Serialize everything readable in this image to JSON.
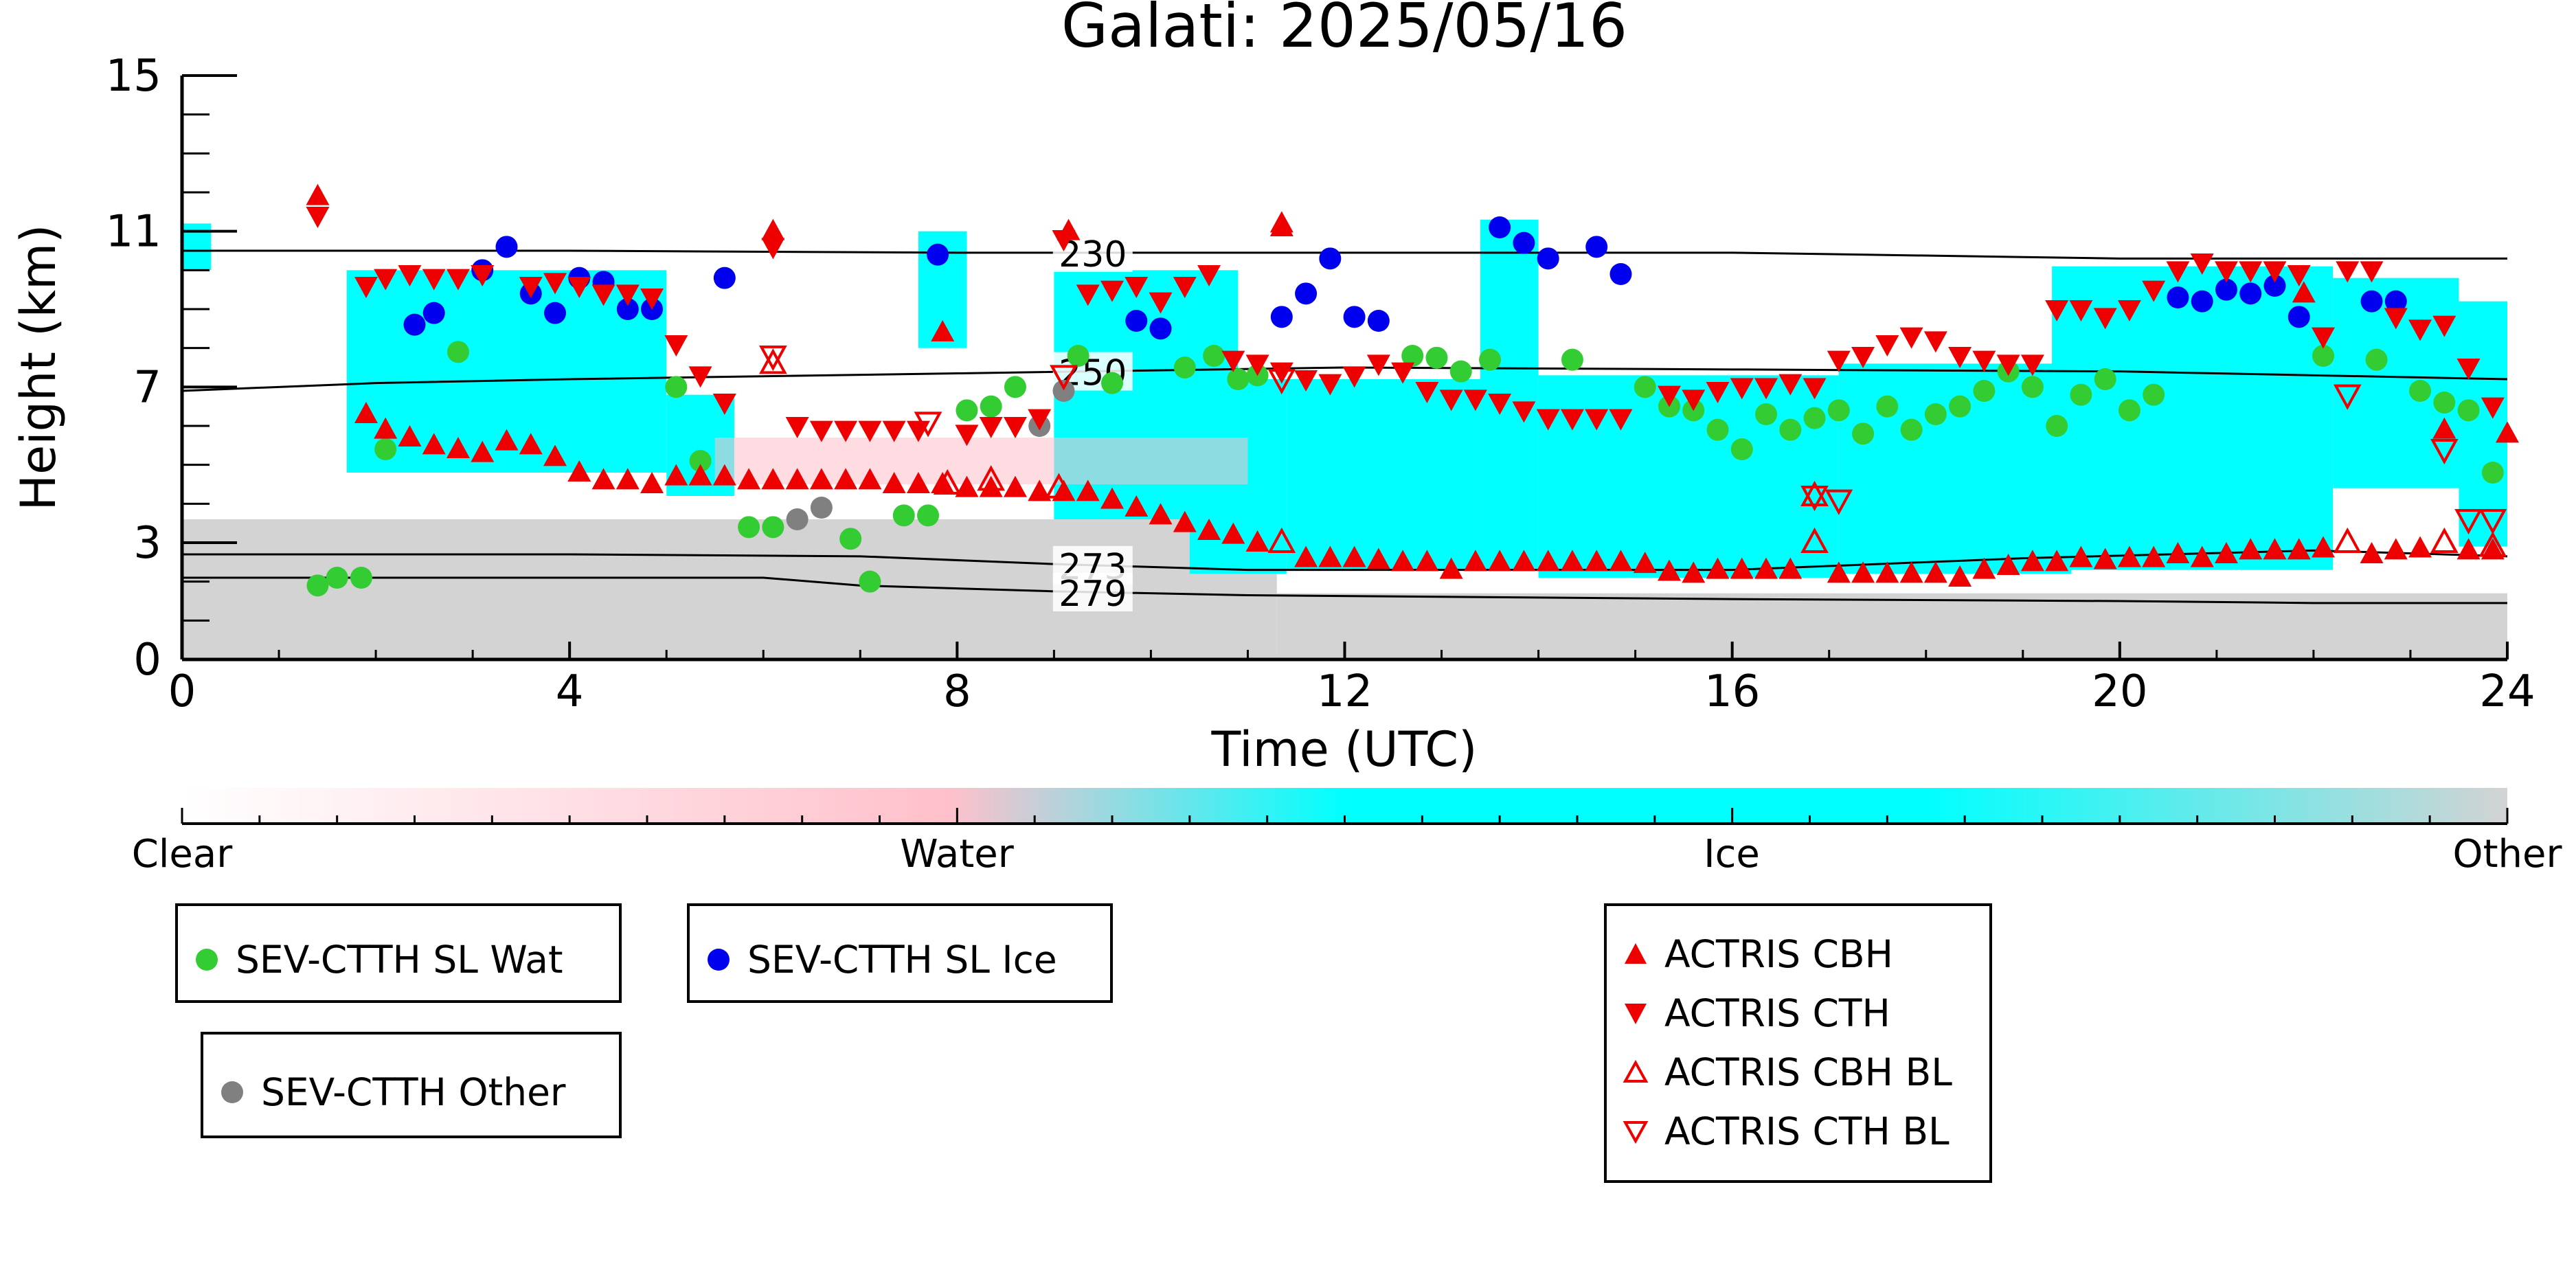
{
  "chart_data": {
    "type": "scatter",
    "title": "Galati: 2025/05/16",
    "xlabel": "Time (UTC)",
    "ylabel": "Height (km)",
    "xlim": [
      0,
      24
    ],
    "ylim": [
      0,
      15
    ],
    "xticks": [
      0,
      4,
      8,
      12,
      16,
      20,
      24
    ],
    "yticks": [
      0,
      3,
      7,
      11,
      15
    ],
    "background_classification": {
      "colorbar_labels": [
        "Clear",
        "Water",
        "Ice",
        "Other"
      ],
      "colors": {
        "clear": "#ffffff",
        "water": "#ffc0cb",
        "ice": "#00ffff",
        "other": "#d3d3d3"
      },
      "ice_regions": [
        {
          "x": [
            0.0,
            0.3
          ],
          "y": [
            10.0,
            11.2
          ]
        },
        {
          "x": [
            1.7,
            5.0
          ],
          "y": [
            4.8,
            10.0
          ]
        },
        {
          "x": [
            5.0,
            5.7
          ],
          "y": [
            4.2,
            6.8
          ]
        },
        {
          "x": [
            7.6,
            8.1
          ],
          "y": [
            8.0,
            11.0
          ]
        },
        {
          "x": [
            9.0,
            10.9
          ],
          "y": [
            3.6,
            10.0
          ]
        },
        {
          "x": [
            10.4,
            11.4
          ],
          "y": [
            2.2,
            7.2
          ]
        },
        {
          "x": [
            11.4,
            13.4
          ],
          "y": [
            2.3,
            7.2
          ]
        },
        {
          "x": [
            13.4,
            14.0
          ],
          "y": [
            2.3,
            11.3
          ]
        },
        {
          "x": [
            14.0,
            17.1
          ],
          "y": [
            2.1,
            7.3
          ]
        },
        {
          "x": [
            17.1,
            19.5
          ],
          "y": [
            2.2,
            7.6
          ]
        },
        {
          "x": [
            19.3,
            22.2
          ],
          "y": [
            2.3,
            10.1
          ]
        },
        {
          "x": [
            22.2,
            23.5
          ],
          "y": [
            4.4,
            9.8
          ]
        },
        {
          "x": [
            23.5,
            24.0
          ],
          "y": [
            2.9,
            9.2
          ]
        }
      ],
      "other_regions": [
        {
          "x": [
            0.0,
            11.3
          ],
          "y": [
            0.0,
            3.6
          ]
        },
        {
          "x": [
            11.3,
            24.0
          ],
          "y": [
            0.0,
            1.7
          ]
        }
      ],
      "water_regions": [
        {
          "x": [
            5.5,
            11.0
          ],
          "y": [
            4.5,
            5.7
          ]
        }
      ]
    },
    "isotherms": [
      {
        "label": "230",
        "label_x": 9.4,
        "x": [
          0,
          4,
          8,
          12,
          16,
          20,
          24
        ],
        "y": [
          10.5,
          10.5,
          10.45,
          10.45,
          10.45,
          10.3,
          10.3
        ]
      },
      {
        "label": "250",
        "label_x": 9.4,
        "x": [
          0,
          1,
          2,
          4,
          8,
          12,
          16,
          20,
          24
        ],
        "y": [
          6.9,
          7.0,
          7.1,
          7.2,
          7.35,
          7.5,
          7.45,
          7.4,
          7.2
        ]
      },
      {
        "label": "273",
        "label_x": 9.4,
        "x": [
          0,
          4,
          7,
          9,
          11,
          12,
          16,
          19,
          22,
          24
        ],
        "y": [
          2.7,
          2.7,
          2.65,
          2.45,
          2.3,
          2.3,
          2.3,
          2.6,
          2.8,
          2.65
        ]
      },
      {
        "label": "279",
        "label_x": 9.4,
        "x": [
          0,
          6,
          7,
          9,
          11,
          16,
          20,
          22,
          24
        ],
        "y": [
          2.1,
          2.1,
          1.9,
          1.75,
          1.65,
          1.55,
          1.5,
          1.45,
          1.45
        ]
      }
    ],
    "series": [
      {
        "name": "SEV-CTTH SL Wat",
        "marker": "circle",
        "color": "#33cc33",
        "x": [
          1.4,
          1.6,
          1.85,
          2.1,
          2.85,
          5.1,
          5.35,
          5.85,
          6.1,
          6.9,
          7.1,
          7.45,
          7.7,
          8.1,
          8.35,
          8.6,
          9.25,
          9.6,
          10.35,
          10.65,
          10.9,
          11.1,
          12.7,
          12.95,
          13.2,
          13.5,
          14.35,
          15.1,
          15.35,
          15.6,
          15.85,
          16.1,
          16.35,
          16.6,
          16.85,
          17.1,
          17.35,
          17.6,
          17.85,
          18.1,
          18.35,
          18.6,
          18.85,
          19.1,
          19.35,
          19.6,
          19.85,
          20.1,
          20.35,
          22.1,
          22.65,
          23.1,
          23.35,
          23.6,
          23.85
        ],
        "y": [
          1.9,
          2.1,
          2.1,
          5.4,
          7.9,
          7.0,
          5.1,
          3.4,
          3.4,
          3.1,
          2.0,
          3.7,
          3.7,
          6.4,
          6.5,
          7.0,
          7.8,
          7.1,
          7.5,
          7.8,
          7.2,
          7.3,
          7.8,
          7.75,
          7.4,
          7.7,
          7.7,
          7.0,
          6.5,
          6.4,
          5.9,
          5.4,
          6.3,
          5.9,
          6.2,
          6.4,
          5.8,
          6.5,
          5.9,
          6.3,
          6.5,
          6.9,
          7.4,
          7.0,
          6.0,
          6.8,
          7.2,
          6.4,
          6.8,
          7.8,
          7.7,
          6.9,
          6.6,
          6.4,
          4.8
        ]
      },
      {
        "name": "SEV-CTTH SL Ice",
        "marker": "circle",
        "color": "#0000ee",
        "x": [
          2.4,
          2.6,
          3.1,
          3.35,
          3.6,
          3.85,
          4.1,
          4.35,
          4.6,
          4.85,
          5.6,
          7.8,
          9.85,
          10.1,
          11.35,
          11.6,
          11.85,
          12.1,
          12.35,
          13.6,
          13.85,
          14.1,
          14.6,
          14.85,
          20.6,
          20.85,
          21.1,
          21.35,
          21.6,
          21.85,
          22.6,
          22.85
        ],
        "y": [
          8.6,
          8.9,
          10.0,
          10.6,
          9.4,
          8.9,
          9.8,
          9.7,
          9.0,
          9.0,
          9.8,
          10.4,
          8.7,
          8.5,
          8.8,
          9.4,
          10.3,
          8.8,
          8.7,
          11.1,
          10.7,
          10.3,
          10.6,
          9.9,
          9.3,
          9.2,
          9.5,
          9.4,
          9.6,
          8.8,
          9.2,
          9.2
        ]
      },
      {
        "name": "SEV-CTTH Other",
        "marker": "circle",
        "color": "#808080",
        "x": [
          6.35,
          6.6,
          8.85,
          9.1
        ],
        "y": [
          3.6,
          3.9,
          6.0,
          6.9
        ]
      },
      {
        "name": "ACTRIS CBH",
        "marker": "triangle-up",
        "color": "#ee0000",
        "filled": true,
        "x": [
          1.4,
          1.9,
          2.1,
          2.35,
          2.6,
          2.85,
          3.1,
          3.35,
          3.6,
          3.85,
          4.1,
          4.35,
          4.6,
          4.85,
          5.1,
          5.35,
          5.6,
          5.85,
          6.1,
          6.35,
          6.6,
          6.85,
          7.1,
          7.35,
          7.6,
          7.85,
          8.1,
          8.35,
          8.6,
          8.85,
          9.1,
          9.35,
          9.6,
          9.85,
          10.1,
          10.35,
          10.6,
          10.85,
          11.1,
          11.35,
          11.6,
          11.85,
          12.1,
          12.35,
          12.6,
          12.85,
          13.1,
          13.35,
          13.6,
          13.85,
          14.1,
          14.35,
          14.6,
          14.85,
          15.1,
          15.35,
          15.6,
          15.85,
          16.1,
          16.35,
          16.6,
          17.1,
          17.35,
          17.6,
          17.85,
          18.1,
          18.35,
          18.6,
          18.85,
          19.1,
          19.35,
          19.6,
          19.85,
          20.1,
          20.35,
          20.6,
          20.85,
          21.1,
          21.35,
          21.6,
          21.85,
          22.1,
          22.6,
          22.85,
          23.1,
          23.6,
          23.85,
          24.0
        ],
        "y": [
          11.9,
          6.3,
          5.9,
          5.7,
          5.5,
          5.4,
          5.3,
          5.6,
          5.5,
          5.2,
          4.8,
          4.6,
          4.6,
          4.5,
          4.7,
          4.7,
          4.7,
          4.6,
          4.6,
          4.6,
          4.6,
          4.6,
          4.6,
          4.5,
          4.5,
          4.5,
          4.4,
          4.4,
          4.4,
          4.3,
          4.3,
          4.3,
          4.1,
          3.9,
          3.7,
          3.5,
          3.3,
          3.2,
          3.0,
          11.2,
          2.6,
          2.6,
          2.6,
          2.55,
          2.5,
          2.5,
          2.3,
          2.5,
          2.5,
          2.5,
          2.5,
          2.5,
          2.5,
          2.5,
          2.45,
          2.25,
          2.2,
          2.3,
          2.3,
          2.3,
          2.3,
          2.2,
          2.2,
          2.2,
          2.2,
          2.2,
          2.1,
          2.3,
          2.4,
          2.5,
          2.5,
          2.6,
          2.55,
          2.6,
          2.6,
          2.7,
          2.6,
          2.7,
          2.8,
          2.8,
          2.8,
          2.85,
          2.7,
          2.8,
          2.85,
          2.8,
          2.8,
          5.8
        ],
        "extra_pairs": [
          [
            6.1,
            11.0
          ],
          [
            7.85,
            8.4
          ],
          [
            9.15,
            11.0
          ],
          [
            11.35,
            11.1
          ],
          [
            21.9,
            9.4
          ],
          [
            23.35,
            5.9
          ]
        ]
      },
      {
        "name": "ACTRIS CTH",
        "marker": "triangle-down",
        "color": "#ee0000",
        "filled": true,
        "x": [
          1.4,
          1.9,
          2.1,
          2.35,
          2.6,
          2.85,
          3.1,
          3.6,
          3.85,
          4.1,
          4.35,
          4.6,
          4.85,
          5.1,
          5.35,
          5.6,
          6.1,
          6.35,
          6.6,
          6.85,
          7.1,
          7.35,
          7.6,
          8.1,
          8.35,
          8.6,
          8.85,
          9.1,
          9.35,
          9.6,
          9.85,
          10.1,
          10.35,
          10.6,
          10.85,
          11.1,
          11.35,
          11.6,
          11.85,
          12.1,
          12.35,
          12.6,
          12.85,
          13.1,
          13.35,
          13.6,
          13.85,
          14.1,
          14.35,
          14.6,
          14.85,
          15.35,
          15.6,
          15.85,
          16.1,
          16.35,
          16.6,
          16.85,
          17.1,
          17.35,
          17.6,
          17.85,
          18.1,
          18.35,
          18.6,
          18.85,
          19.1,
          19.35,
          19.6,
          19.85,
          20.1,
          20.35,
          20.6,
          20.85,
          21.1,
          21.35,
          21.6,
          21.85,
          22.1,
          22.35,
          22.6,
          22.85,
          23.1,
          23.35,
          23.6,
          23.85
        ],
        "y": [
          11.4,
          9.6,
          9.8,
          9.9,
          9.8,
          9.8,
          9.9,
          9.6,
          9.7,
          9.6,
          9.4,
          9.4,
          9.3,
          8.1,
          7.3,
          6.6,
          10.6,
          6.0,
          5.9,
          5.9,
          5.9,
          5.9,
          5.9,
          5.8,
          6.0,
          6.0,
          6.2,
          10.8,
          9.4,
          9.5,
          9.6,
          9.2,
          9.6,
          9.9,
          7.7,
          7.6,
          7.4,
          7.2,
          7.1,
          7.3,
          7.6,
          7.4,
          6.9,
          6.7,
          6.7,
          6.6,
          6.4,
          6.2,
          6.2,
          6.2,
          6.2,
          6.8,
          6.7,
          6.9,
          7.0,
          7.0,
          7.1,
          7.0,
          7.7,
          7.8,
          8.1,
          8.3,
          8.2,
          7.8,
          7.7,
          7.6,
          7.6,
          9.0,
          9.0,
          8.8,
          9.0,
          9.5,
          10.0,
          10.2,
          10.0,
          10.0,
          10.0,
          9.9,
          8.3,
          10.0,
          10.0,
          8.8,
          8.5,
          8.6,
          7.5,
          6.5
        ]
      },
      {
        "name": "ACTRIS CBH BL",
        "marker": "triangle-up",
        "color": "#ee0000",
        "filled": false,
        "x": [
          6.1,
          7.9,
          8.35,
          9.05,
          11.35,
          16.85,
          22.35,
          23.35,
          23.85
        ],
        "y": [
          7.6,
          4.5,
          4.6,
          4.4,
          3.0,
          3.0,
          3.0,
          3.0,
          2.9
        ],
        "extra_pairs": [
          [
            16.85,
            4.2
          ]
        ]
      },
      {
        "name": "ACTRIS CTH BL",
        "marker": "triangle-down",
        "color": "#ee0000",
        "filled": false,
        "x": [
          6.1,
          7.7,
          9.1,
          11.35,
          16.85,
          17.1,
          22.35,
          23.35,
          23.6,
          23.85
        ],
        "y": [
          7.8,
          6.1,
          7.3,
          7.2,
          4.2,
          4.1,
          6.8,
          5.4,
          3.6,
          3.6
        ]
      }
    ]
  },
  "colorbar": {
    "labels": [
      "Clear",
      "Water",
      "Ice",
      "Other"
    ]
  },
  "legends": {
    "box1": {
      "label": "SEV-CTTH SL Wat",
      "color": "#33cc33"
    },
    "box2": {
      "label": "SEV-CTTH SL Ice",
      "color": "#0000ee"
    },
    "box3": {
      "label": "SEV-CTTH Other",
      "color": "#808080"
    },
    "box4": [
      {
        "label": "ACTRIS CBH",
        "symbol": "triangle-up-filled"
      },
      {
        "label": "ACTRIS CTH",
        "symbol": "triangle-down-filled"
      },
      {
        "label": "ACTRIS CBH BL",
        "symbol": "triangle-up-open"
      },
      {
        "label": "ACTRIS CTH BL",
        "symbol": "triangle-down-open"
      }
    ]
  }
}
